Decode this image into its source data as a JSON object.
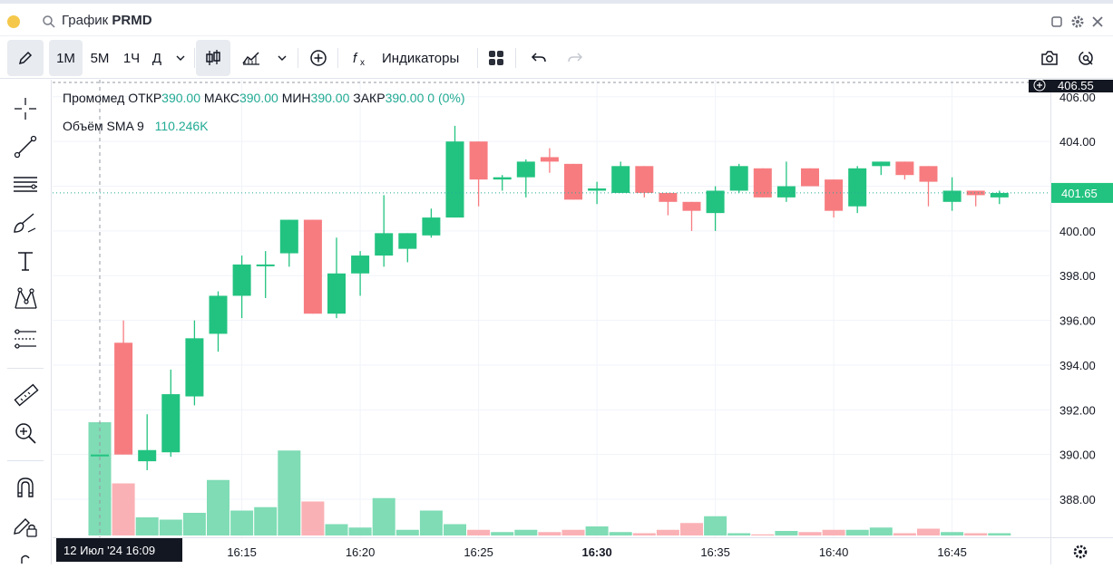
{
  "window": {
    "title_prefix": "График",
    "title_symbol": "PRMD"
  },
  "toolbar": {
    "intervals": [
      "1М",
      "5М",
      "1Ч",
      "Д"
    ],
    "active_interval": "1М",
    "indicators_label": "Индикаторы"
  },
  "legend": {
    "name": "Промомед",
    "open_label": "ОТКР",
    "open_value": "390.00",
    "high_label": "МАКС",
    "high_value": "390.00",
    "low_label": "МИН",
    "low_value": "390.00",
    "close_label": "ЗАКР",
    "close_value": "390.00",
    "change": "0 (0%)",
    "volume_label": "Объём SMA 9",
    "volume_value": "110.246K"
  },
  "axis": {
    "top_price_label": "406.55",
    "current_price_label": "401.65",
    "crosshair_time_label": "12 Июл '24   16:09"
  },
  "colors": {
    "up": "#22c380",
    "down": "#f77c80",
    "up_volume": "#7fdcb5",
    "down_volume": "#fab1b5"
  },
  "chart_data": {
    "type": "candlestick",
    "price_ticks": [
      388,
      390,
      392,
      394,
      396,
      398,
      400,
      402,
      404,
      406
    ],
    "price_tick_labels": [
      "388.00",
      "390.00",
      "392.00",
      "394.00",
      "396.00",
      "398.00",
      "400.00",
      "",
      "404.00",
      "406.00"
    ],
    "ylim": [
      386.3,
      406.6
    ],
    "time_ticks": [
      "16:15",
      "16:20",
      "16:25",
      "16:30",
      "16:35",
      "16:40",
      "16:45"
    ],
    "candles": [
      {
        "t": "16:09",
        "o": 390.0,
        "h": 390.0,
        "l": 390.0,
        "c": 390.0,
        "v": 100
      },
      {
        "t": "16:10",
        "o": 395.0,
        "h": 396.0,
        "l": 390.0,
        "c": 390.0,
        "v": 46
      },
      {
        "t": "16:11",
        "o": 389.7,
        "h": 391.8,
        "l": 389.3,
        "c": 390.2,
        "v": 16
      },
      {
        "t": "16:12",
        "o": 390.1,
        "h": 393.8,
        "l": 389.9,
        "c": 392.7,
        "v": 14
      },
      {
        "t": "16:13",
        "o": 392.6,
        "h": 396.0,
        "l": 392.2,
        "c": 395.2,
        "v": 20
      },
      {
        "t": "16:14",
        "o": 395.4,
        "h": 397.3,
        "l": 394.6,
        "c": 397.1,
        "v": 49
      },
      {
        "t": "16:15",
        "o": 397.1,
        "h": 398.9,
        "l": 396.1,
        "c": 398.5,
        "v": 22
      },
      {
        "t": "16:16",
        "o": 398.5,
        "h": 399.1,
        "l": 397.0,
        "c": 398.5,
        "v": 25
      },
      {
        "t": "16:17",
        "o": 399.0,
        "h": 400.5,
        "l": 398.4,
        "c": 400.5,
        "v": 75
      },
      {
        "t": "16:18",
        "o": 400.5,
        "h": 400.5,
        "l": 396.3,
        "c": 396.3,
        "v": 30
      },
      {
        "t": "16:19",
        "o": 396.3,
        "h": 399.7,
        "l": 396.1,
        "c": 398.1,
        "v": 10
      },
      {
        "t": "16:20",
        "o": 398.1,
        "h": 399.1,
        "l": 397.1,
        "c": 398.9,
        "v": 7
      },
      {
        "t": "16:21",
        "o": 398.9,
        "h": 401.6,
        "l": 398.4,
        "c": 399.9,
        "v": 33
      },
      {
        "t": "16:22",
        "o": 399.2,
        "h": 399.9,
        "l": 398.6,
        "c": 399.9,
        "v": 5
      },
      {
        "t": "16:23",
        "o": 399.8,
        "h": 401.0,
        "l": 399.7,
        "c": 400.6,
        "v": 22
      },
      {
        "t": "16:24",
        "o": 400.6,
        "h": 404.7,
        "l": 400.6,
        "c": 404.0,
        "v": 10
      },
      {
        "t": "16:25",
        "o": 404.0,
        "h": 404.0,
        "l": 401.1,
        "c": 402.3,
        "v": 5
      },
      {
        "t": "16:26",
        "o": 402.3,
        "h": 402.5,
        "l": 401.8,
        "c": 402.4,
        "v": 3
      },
      {
        "t": "16:27",
        "o": 402.4,
        "h": 403.2,
        "l": 401.5,
        "c": 403.1,
        "v": 5
      },
      {
        "t": "16:28",
        "o": 403.3,
        "h": 403.7,
        "l": 402.6,
        "c": 403.1,
        "v": 3
      },
      {
        "t": "16:29",
        "o": 403.0,
        "h": 403.0,
        "l": 401.4,
        "c": 401.4,
        "v": 5
      },
      {
        "t": "16:30",
        "o": 401.8,
        "h": 402.2,
        "l": 401.2,
        "c": 401.9,
        "v": 8
      },
      {
        "t": "16:31",
        "o": 401.7,
        "h": 403.1,
        "l": 401.7,
        "c": 402.9,
        "v": 3
      },
      {
        "t": "16:32",
        "o": 402.9,
        "h": 402.9,
        "l": 401.5,
        "c": 401.7,
        "v": 2
      },
      {
        "t": "16:33",
        "o": 401.7,
        "h": 401.7,
        "l": 400.7,
        "c": 401.3,
        "v": 5
      },
      {
        "t": "16:34",
        "o": 401.3,
        "h": 401.3,
        "l": 400.0,
        "c": 400.9,
        "v": 11
      },
      {
        "t": "16:35",
        "o": 400.8,
        "h": 402.0,
        "l": 400.0,
        "c": 401.8,
        "v": 17
      },
      {
        "t": "16:36",
        "o": 401.8,
        "h": 403.0,
        "l": 401.7,
        "c": 402.9,
        "v": 2
      },
      {
        "t": "16:37",
        "o": 402.8,
        "h": 402.8,
        "l": 401.5,
        "c": 401.5,
        "v": 1
      },
      {
        "t": "16:38",
        "o": 401.5,
        "h": 403.1,
        "l": 401.3,
        "c": 402.0,
        "v": 4
      },
      {
        "t": "16:39",
        "o": 402.8,
        "h": 402.8,
        "l": 402.0,
        "c": 402.0,
        "v": 3
      },
      {
        "t": "16:40",
        "o": 402.3,
        "h": 402.3,
        "l": 400.6,
        "c": 400.9,
        "v": 5
      },
      {
        "t": "16:41",
        "o": 401.1,
        "h": 402.9,
        "l": 400.8,
        "c": 402.8,
        "v": 5
      },
      {
        "t": "16:42",
        "o": 402.9,
        "h": 403.1,
        "l": 402.5,
        "c": 403.1,
        "v": 7
      },
      {
        "t": "16:43",
        "o": 403.1,
        "h": 403.1,
        "l": 402.3,
        "c": 402.5,
        "v": 2
      },
      {
        "t": "16:44",
        "o": 402.9,
        "h": 402.9,
        "l": 401.1,
        "c": 402.2,
        "v": 6
      },
      {
        "t": "16:45",
        "o": 401.3,
        "h": 402.4,
        "l": 400.9,
        "c": 401.8,
        "v": 3
      },
      {
        "t": "16:46",
        "o": 401.8,
        "h": 401.8,
        "l": 401.1,
        "c": 401.6,
        "v": 2
      },
      {
        "t": "16:47",
        "o": 401.5,
        "h": 401.8,
        "l": 401.2,
        "c": 401.7,
        "v": 2
      }
    ]
  }
}
